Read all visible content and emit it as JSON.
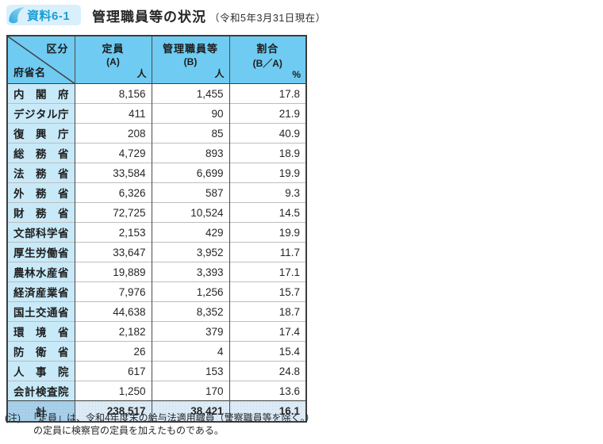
{
  "header": {
    "badge": "資料6-1",
    "title": "管理職員等の状況",
    "subtitle": "（令和5年3月31日現在）"
  },
  "table": {
    "corner": {
      "top_right": "区分",
      "bottom_left": "府省名"
    },
    "columns": [
      {
        "label": "定員",
        "sub": "(A)",
        "unit": "人"
      },
      {
        "label": "管理職員等",
        "sub": "(B)",
        "unit": "人"
      },
      {
        "label": "割合",
        "sub": "(B／A)",
        "unit": "%"
      }
    ],
    "rows": [
      {
        "name": "内閣府",
        "capacity": "8,156",
        "managers": "1,455",
        "ratio": "17.8"
      },
      {
        "name": "デジタル庁",
        "capacity": "411",
        "managers": "90",
        "ratio": "21.9"
      },
      {
        "name": "復興庁",
        "capacity": "208",
        "managers": "85",
        "ratio": "40.9"
      },
      {
        "name": "総務省",
        "capacity": "4,729",
        "managers": "893",
        "ratio": "18.9"
      },
      {
        "name": "法務省",
        "capacity": "33,584",
        "managers": "6,699",
        "ratio": "19.9"
      },
      {
        "name": "外務省",
        "capacity": "6,326",
        "managers": "587",
        "ratio": "9.3"
      },
      {
        "name": "財務省",
        "capacity": "72,725",
        "managers": "10,524",
        "ratio": "14.5"
      },
      {
        "name": "文部科学省",
        "capacity": "2,153",
        "managers": "429",
        "ratio": "19.9"
      },
      {
        "name": "厚生労働省",
        "capacity": "33,647",
        "managers": "3,952",
        "ratio": "11.7"
      },
      {
        "name": "農林水産省",
        "capacity": "19,889",
        "managers": "3,393",
        "ratio": "17.1"
      },
      {
        "name": "経済産業省",
        "capacity": "7,976",
        "managers": "1,256",
        "ratio": "15.7"
      },
      {
        "name": "国土交通省",
        "capacity": "44,638",
        "managers": "8,352",
        "ratio": "18.7"
      },
      {
        "name": "環境省",
        "capacity": "2,182",
        "managers": "379",
        "ratio": "17.4"
      },
      {
        "name": "防衛省",
        "capacity": "26",
        "managers": "4",
        "ratio": "15.4"
      },
      {
        "name": "人事院",
        "capacity": "617",
        "managers": "153",
        "ratio": "24.8"
      },
      {
        "name": "会計検査院",
        "capacity": "1,250",
        "managers": "170",
        "ratio": "13.6"
      }
    ],
    "total": {
      "name": "計",
      "capacity": "238,517",
      "managers": "38,421",
      "ratio": "16.1"
    }
  },
  "note": {
    "label": "(注)",
    "line1": "「定員」は、令和4年度末の給与法適用職員（警察職員等を除く。）",
    "line2": "の定員に検察官の定員を加えたものである。"
  },
  "colors": {
    "header_bg": "#6fcbf1",
    "name_cell_bg": "#c8e9f8",
    "total_label_bg": "#a9d0ea",
    "total_cell_bg": "#dcebf6",
    "badge_bg": "#d9f0fc",
    "badge_text": "#179dd8",
    "accent_blue": "#2fa8dd",
    "border_dark": "#3c3c3c",
    "row_line": "#bdbdbd"
  }
}
